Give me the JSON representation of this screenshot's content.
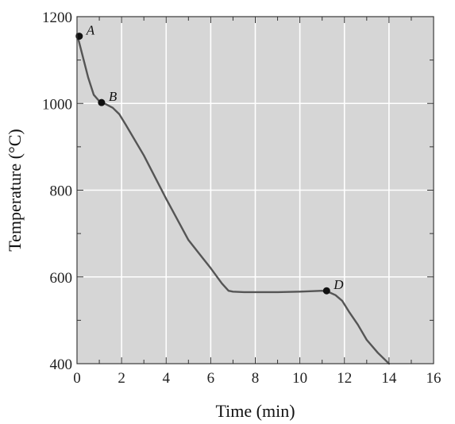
{
  "chart_data": {
    "type": "line",
    "title": "",
    "xlabel": "Time (min)",
    "ylabel": "Temperature (°C)",
    "xlim": [
      0,
      16
    ],
    "ylim": [
      400,
      1200
    ],
    "x_ticks": [
      0,
      2,
      4,
      6,
      8,
      10,
      12,
      14,
      16
    ],
    "y_ticks": [
      400,
      600,
      800,
      1000,
      1200
    ],
    "x_minor_step": 1,
    "y_minor_step": 100,
    "grid": true,
    "background_color": "#d6d6d6",
    "grid_color": "#ffffff",
    "line_color": "#555555",
    "series": [
      {
        "x": [
          0,
          0.25,
          0.5,
          0.75,
          1.0,
          1.3,
          1.6,
          1.9,
          2.2,
          3,
          4,
          5,
          6,
          6.5,
          6.8,
          7.0,
          7.5,
          8,
          9,
          10,
          11,
          11.3,
          11.6,
          11.9,
          12.2,
          12.6,
          13,
          13.5,
          14
        ],
        "y": [
          1160,
          1110,
          1060,
          1020,
          1005,
          998,
          990,
          975,
          950,
          880,
          780,
          685,
          620,
          585,
          568,
          566,
          565,
          565,
          565,
          566,
          568,
          565,
          558,
          545,
          520,
          490,
          455,
          425,
          400
        ]
      }
    ],
    "points": [
      {
        "label": "A",
        "x": 0.1,
        "y": 1155
      },
      {
        "label": "B",
        "x": 1.1,
        "y": 1002
      },
      {
        "label": "D",
        "x": 11.2,
        "y": 568
      }
    ]
  }
}
